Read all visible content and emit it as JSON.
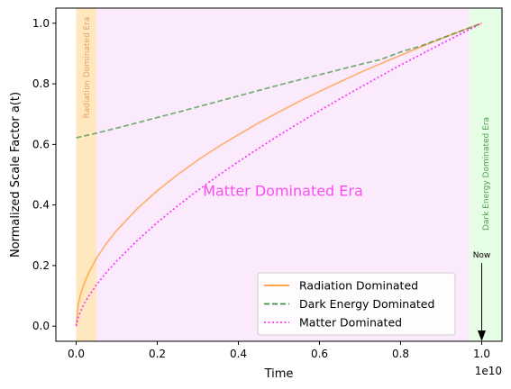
{
  "chart_data": {
    "type": "line",
    "xlabel": "Time",
    "ylabel": "Normalized Scale Factor a(t)",
    "x_offset_label": "1e10",
    "xlim": [
      -0.05,
      1.05
    ],
    "ylim": [
      -0.05,
      1.05
    ],
    "x_scale_note": "x tick values are in units of 1e10",
    "x_ticks": [
      0.0,
      0.2,
      0.4,
      0.6,
      0.8,
      1.0
    ],
    "x_tick_labels": [
      "0.0",
      "0.2",
      "0.4",
      "0.6",
      "0.8",
      "1.0"
    ],
    "y_ticks": [
      0.0,
      0.2,
      0.4,
      0.6,
      0.8,
      1.0
    ],
    "y_tick_labels": [
      "0.0",
      "0.2",
      "0.4",
      "0.6",
      "0.8",
      "1.0"
    ],
    "grid": false,
    "legend_position": "lower-right",
    "regions": [
      {
        "label": "Radiation Dominated Era",
        "x_range": [
          0.0,
          0.05
        ],
        "color": "#ffe7bf",
        "text_color": "#e8a060"
      },
      {
        "label": "Matter Dominated Era",
        "x_range": [
          0.05,
          0.97
        ],
        "color": "#fbeafb",
        "text_color": "#f64ff0"
      },
      {
        "label": "Dark Energy Dominated Era",
        "x_range": [
          0.97,
          1.05
        ],
        "color": "#e6fde6",
        "text_color": "#4aa14a"
      }
    ],
    "series": [
      {
        "name": "Radiation Dominated",
        "color": "#ff8c1a",
        "style": "solid",
        "opacity": 0.6,
        "x": [
          0.0,
          0.005,
          0.01,
          0.02,
          0.03,
          0.05,
          0.075,
          0.1,
          0.15,
          0.2,
          0.25,
          0.3,
          0.35,
          0.4,
          0.45,
          0.5,
          0.55,
          0.6,
          0.65,
          0.7,
          0.75,
          0.8,
          0.85,
          0.9,
          0.95,
          1.0
        ],
        "y": [
          0.0,
          0.071,
          0.1,
          0.141,
          0.173,
          0.224,
          0.274,
          0.316,
          0.387,
          0.447,
          0.5,
          0.548,
          0.592,
          0.632,
          0.671,
          0.707,
          0.742,
          0.775,
          0.806,
          0.837,
          0.866,
          0.894,
          0.922,
          0.949,
          0.975,
          1.0
        ]
      },
      {
        "name": "Dark Energy Dominated",
        "color": "#2a8a2a",
        "style": "dashed",
        "opacity": 0.65,
        "x": [
          0.0,
          0.05,
          0.1,
          0.15,
          0.2,
          0.25,
          0.3,
          0.35,
          0.4,
          0.45,
          0.5,
          0.55,
          0.6,
          0.65,
          0.7,
          0.75,
          0.8,
          0.85,
          0.9,
          0.95,
          1.0
        ],
        "y": [
          0.622,
          0.637,
          0.654,
          0.671,
          0.689,
          0.706,
          0.724,
          0.742,
          0.76,
          0.778,
          0.796,
          0.813,
          0.83,
          0.847,
          0.864,
          0.88,
          0.905,
          0.925,
          0.95,
          0.975,
          1.0
        ]
      },
      {
        "name": "Matter Dominated",
        "color": "#ff33ff",
        "style": "dotted",
        "opacity": 1.0,
        "x": [
          0.0,
          0.005,
          0.01,
          0.02,
          0.03,
          0.05,
          0.075,
          0.1,
          0.15,
          0.2,
          0.25,
          0.3,
          0.35,
          0.4,
          0.45,
          0.5,
          0.55,
          0.6,
          0.65,
          0.7,
          0.75,
          0.8,
          0.85,
          0.9,
          0.95,
          1.0
        ],
        "y": [
          0.0,
          0.029,
          0.046,
          0.074,
          0.097,
          0.136,
          0.178,
          0.215,
          0.282,
          0.342,
          0.397,
          0.448,
          0.497,
          0.543,
          0.587,
          0.63,
          0.671,
          0.711,
          0.75,
          0.788,
          0.825,
          0.862,
          0.897,
          0.932,
          0.966,
          1.0
        ]
      }
    ],
    "annotations": [
      {
        "text": "Now",
        "x": 1.0,
        "y": 0.22,
        "arrow_to_y": -0.05
      }
    ]
  }
}
